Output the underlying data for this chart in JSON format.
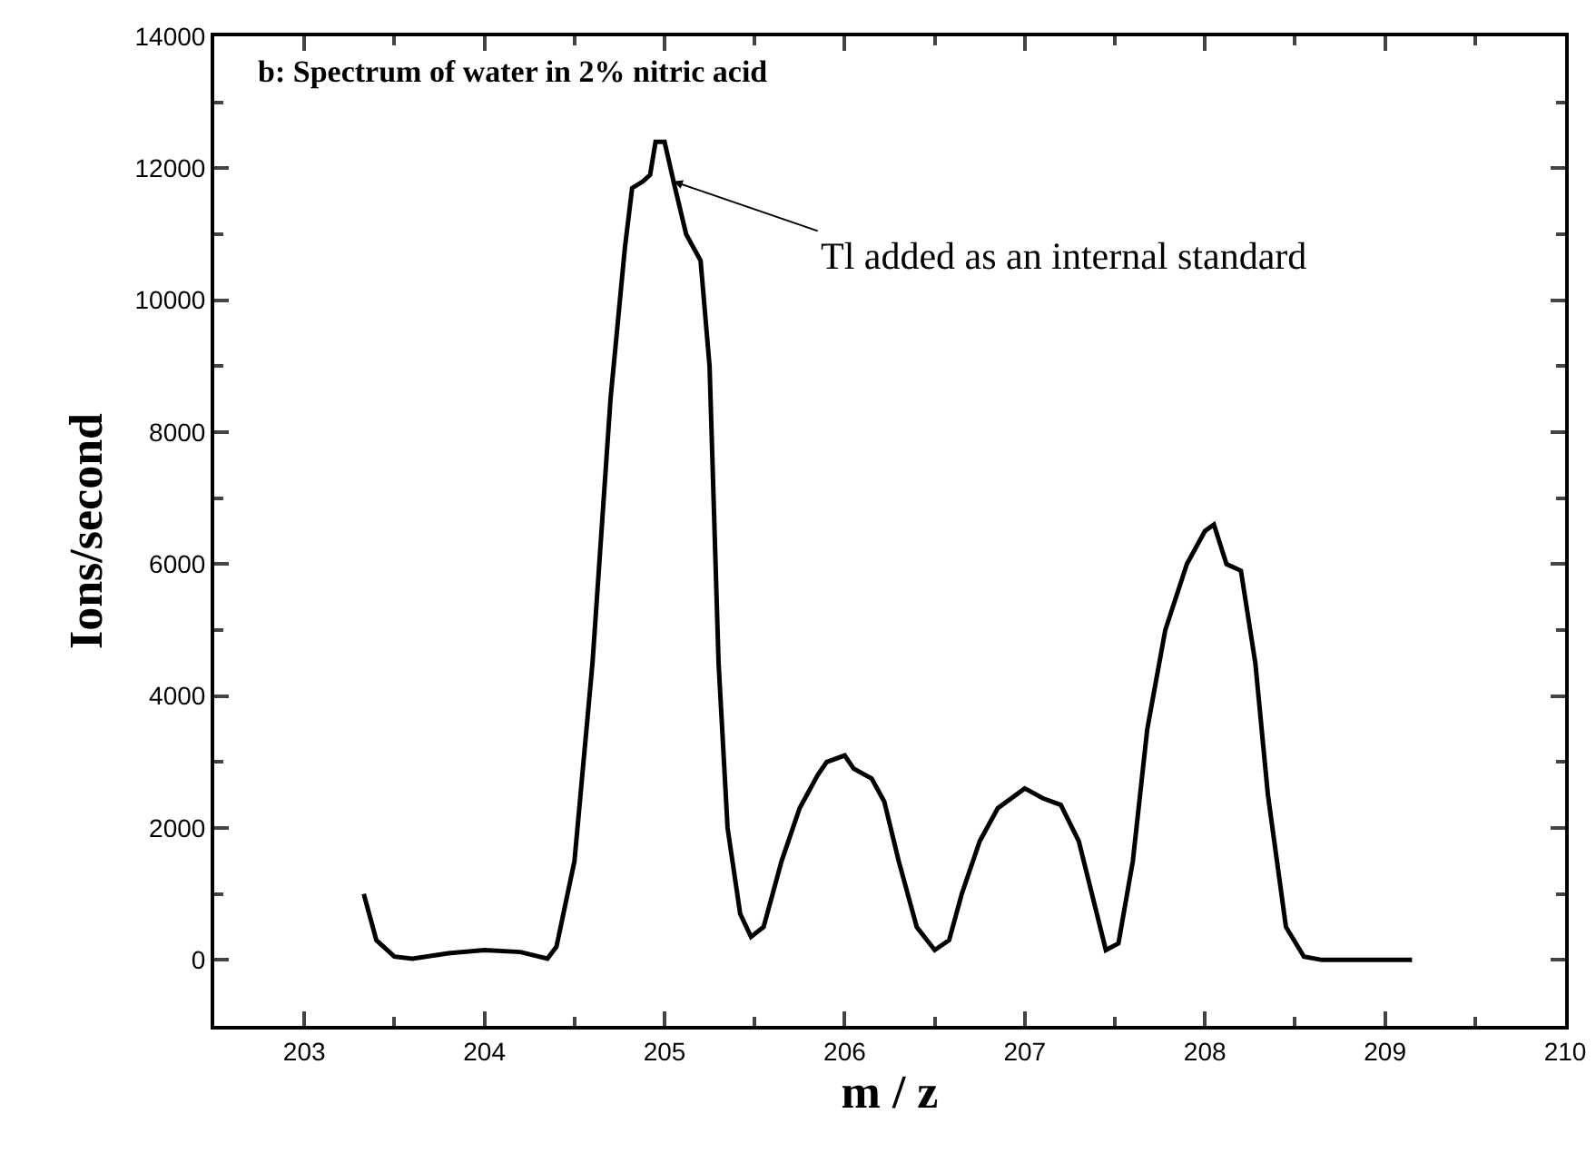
{
  "chart_data": {
    "type": "line",
    "title": "b: Spectrum of water in 2% nitric acid",
    "xlabel": "m / z",
    "ylabel": "Ions/second",
    "x": [
      203.33,
      203.4,
      203.5,
      203.6,
      203.8,
      204.0,
      204.2,
      204.35,
      204.4,
      204.5,
      204.6,
      204.7,
      204.78,
      204.82,
      204.88,
      204.92,
      204.95,
      205.0,
      205.05,
      205.12,
      205.2,
      205.25,
      205.3,
      205.35,
      205.42,
      205.48,
      205.55,
      205.65,
      205.75,
      205.85,
      205.9,
      206.0,
      206.05,
      206.15,
      206.22,
      206.3,
      206.4,
      206.5,
      206.58,
      206.65,
      206.75,
      206.85,
      207.0,
      207.1,
      207.2,
      207.3,
      207.4,
      207.45,
      207.52,
      207.6,
      207.68,
      207.78,
      207.9,
      208.0,
      208.05,
      208.12,
      208.2,
      208.28,
      208.35,
      208.45,
      208.55,
      208.65,
      209.15
    ],
    "series": [
      {
        "color": "#000000",
        "values": [
          1000,
          300,
          50,
          20,
          100,
          150,
          120,
          20,
          200,
          1500,
          4500,
          8500,
          10800,
          11700,
          11800,
          11900,
          12400,
          12400,
          11800,
          11000,
          10600,
          9000,
          4500,
          2000,
          700,
          350,
          500,
          1500,
          2300,
          2800,
          3000,
          3100,
          2900,
          2750,
          2400,
          1500,
          500,
          150,
          300,
          1000,
          1800,
          2300,
          2600,
          2450,
          2350,
          1800,
          700,
          150,
          250,
          1500,
          3500,
          5000,
          6000,
          6500,
          6600,
          6000,
          5900,
          4500,
          2500,
          500,
          50,
          0,
          0
        ]
      }
    ],
    "annotations": [
      {
        "text": "Tl added as an internal standard",
        "x": 205.05,
        "y": 11800
      }
    ],
    "xlim": [
      202.5,
      210
    ],
    "xticks": [
      203,
      204,
      205,
      206,
      207,
      208,
      209,
      210
    ],
    "ylim": [
      -1000,
      14000
    ],
    "yticks": [
      0,
      2000,
      4000,
      6000,
      8000,
      10000,
      12000,
      14000
    ],
    "grid": false,
    "marker": "none",
    "line_style": "solid"
  }
}
